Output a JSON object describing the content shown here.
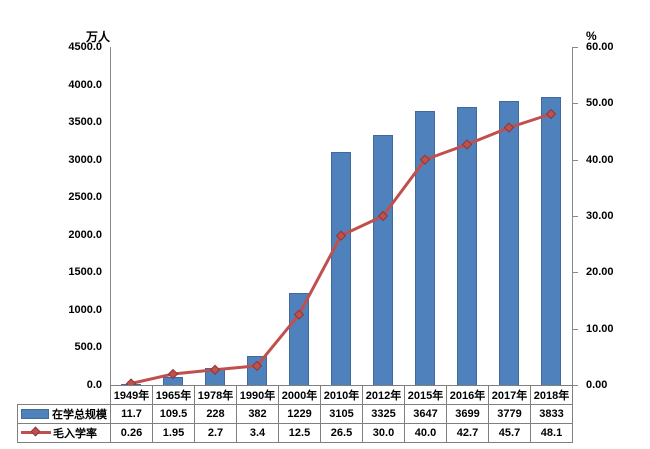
{
  "chart_data": {
    "type": "bar+line",
    "title": "",
    "categories": [
      "1949年",
      "1965年",
      "1978年",
      "1990年",
      "2000年",
      "2010年",
      "2012年",
      "2015年",
      "2016年",
      "2017年",
      "2018年"
    ],
    "series": [
      {
        "name": "在学总规模",
        "type": "bar",
        "axis": "left",
        "color": "#4f81bd",
        "border_color": "#41699e",
        "values": [
          "11.7",
          "109.5",
          "228",
          "382",
          "1229",
          "3105",
          "3325",
          "3647",
          "3699",
          "3779",
          "3833"
        ]
      },
      {
        "name": "毛入学率",
        "type": "line",
        "axis": "right",
        "color": "#c0504d",
        "marker": "diamond",
        "marker_color": "#c0504d",
        "values": [
          "0.26",
          "1.95",
          "2.7",
          "3.4",
          "12.5",
          "26.5",
          "30.0",
          "40.0",
          "42.7",
          "45.7",
          "48.1"
        ]
      }
    ],
    "left_axis": {
      "title": "万人",
      "min": 0,
      "max": 4500,
      "step": 500,
      "ticks": [
        "0.0",
        "500.0",
        "1000.0",
        "1500.0",
        "2000.0",
        "2500.0",
        "3000.0",
        "3500.0",
        "4000.0",
        "4500.0"
      ]
    },
    "right_axis": {
      "title": "%",
      "min": 0,
      "max": 60,
      "step": 10,
      "ticks": [
        "0.00",
        "10.00",
        "20.00",
        "30.00",
        "40.00",
        "50.00",
        "60.00"
      ]
    },
    "grid": false,
    "legend_position": "data-table-left",
    "colors": {
      "axis_line": "#898989",
      "table_border": "#7f7f7f",
      "text": "#000000",
      "background": "#ffffff"
    }
  }
}
